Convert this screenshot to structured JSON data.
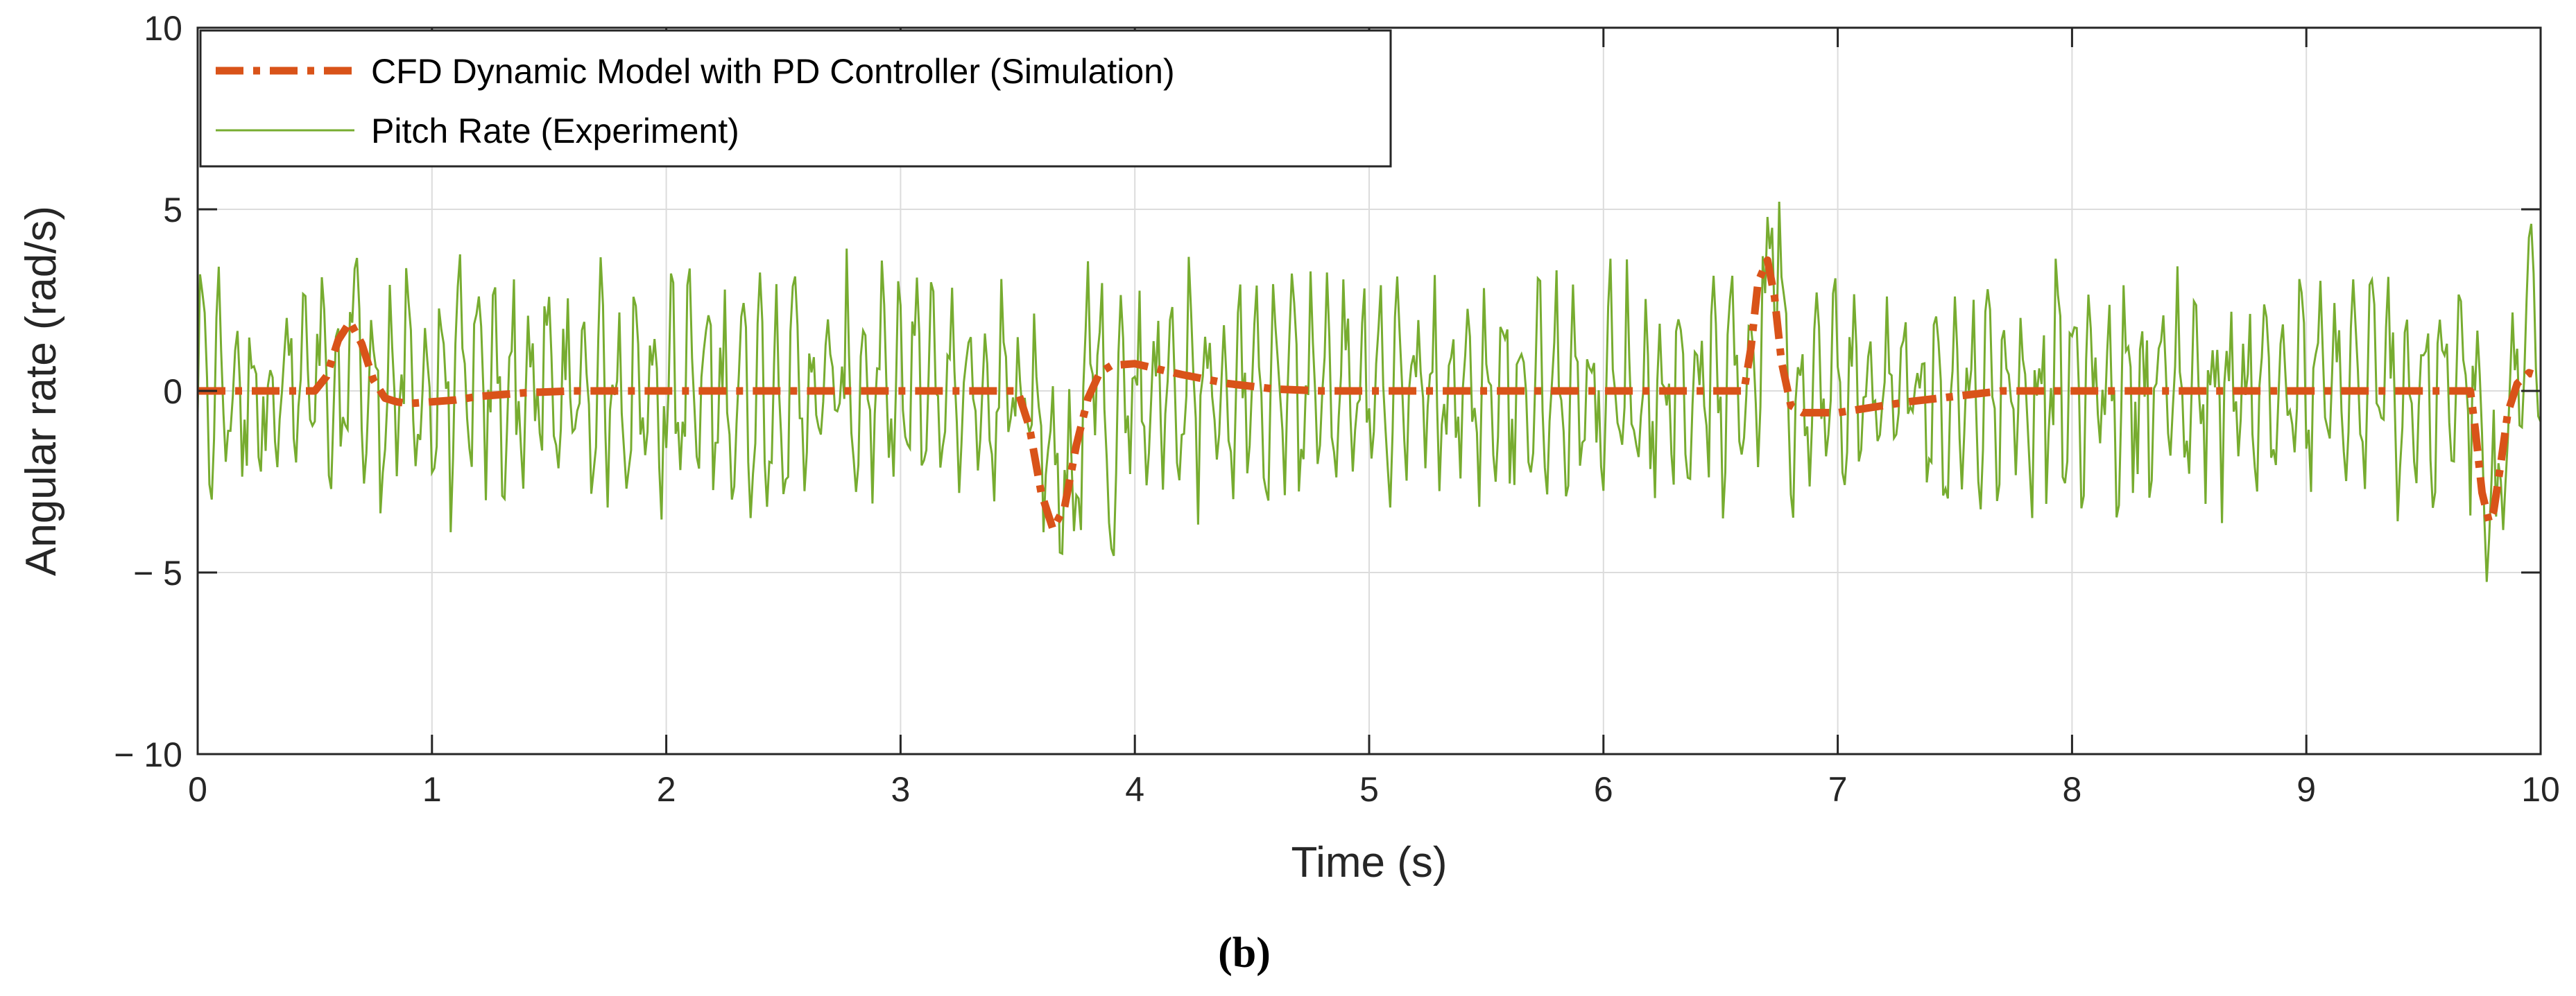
{
  "chart_data": {
    "type": "line",
    "title": "",
    "xlabel": "Time (s)",
    "ylabel": "Angular rate (rad/s)",
    "xlim": [
      0,
      10
    ],
    "ylim": [
      -10,
      10
    ],
    "x_ticks": [
      0,
      1,
      2,
      3,
      4,
      5,
      6,
      7,
      8,
      9,
      10
    ],
    "y_ticks": [
      -10,
      -5,
      0,
      5,
      10
    ],
    "x_tick_labels": [
      "0",
      "1",
      "2",
      "3",
      "4",
      "5",
      "6",
      "7",
      "8",
      "9",
      "10"
    ],
    "y_tick_labels": [
      "− 10",
      "− 5",
      "0",
      "5",
      "10"
    ],
    "grid": true,
    "legend_position": "top-left",
    "caption": "(b)",
    "series": [
      {
        "name": "CFD Dynamic Model with PD Controller (Simulation)",
        "color": "#D95319",
        "style": "dash-dot",
        "x": [
          0,
          0.5,
          0.55,
          0.6,
          0.65,
          0.7,
          0.75,
          0.8,
          0.85,
          0.9,
          1.0,
          1.1,
          1.2,
          1.4,
          1.6,
          1.8,
          3.5,
          3.55,
          3.6,
          3.65,
          3.7,
          3.75,
          3.8,
          3.85,
          3.9,
          4.0,
          4.1,
          4.2,
          4.4,
          4.6,
          4.8,
          6.6,
          6.63,
          6.66,
          6.7,
          6.73,
          6.76,
          6.8,
          6.85,
          6.9,
          7.0,
          7.1,
          7.3,
          7.5,
          7.7,
          9.7,
          9.72,
          9.75,
          9.78,
          9.8,
          9.83,
          9.86,
          9.9,
          9.95,
          10.0
        ],
        "y": [
          0,
          0,
          0.4,
          1.4,
          1.9,
          1.3,
          0.3,
          -0.2,
          -0.3,
          -0.35,
          -0.3,
          -0.25,
          -0.15,
          -0.05,
          0,
          0,
          0,
          -1.0,
          -2.8,
          -3.8,
          -3.2,
          -1.5,
          -0.2,
          0.5,
          0.7,
          0.75,
          0.6,
          0.45,
          0.2,
          0.05,
          0,
          0,
          1.2,
          3.0,
          3.6,
          2.6,
          0.8,
          -0.4,
          -0.6,
          -0.6,
          -0.6,
          -0.5,
          -0.3,
          -0.15,
          0,
          0,
          -1.0,
          -2.8,
          -3.6,
          -3.3,
          -2.0,
          -0.6,
          0.2,
          0.5,
          0.4
        ]
      },
      {
        "name": "Pitch Rate (Experiment)",
        "color": "#77AC30",
        "style": "solid",
        "x": [],
        "y": []
      }
    ]
  }
}
